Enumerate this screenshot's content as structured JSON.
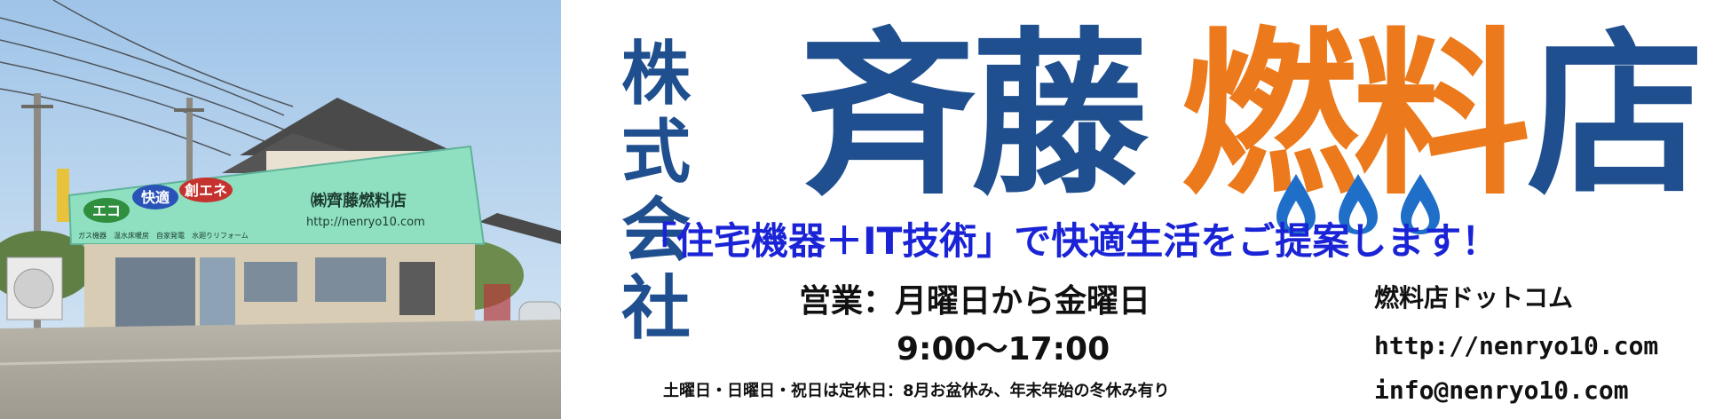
{
  "photo": {
    "alt": "店舗外観写真",
    "sign_name": "㈱齊藤燃料店",
    "sign_url": "http://nenryo10.com",
    "badges": [
      "エコ",
      "快適",
      "創エネ"
    ],
    "services": "ガス機器　温水床暖房　自家発電　水廻りリフォーム"
  },
  "logo": {
    "kabushiki_line1": "株式",
    "kabushiki_line2": "会社",
    "saito": "斉藤",
    "nen": "燃",
    "ryo": "料",
    "ten": "店"
  },
  "tagline": "「住宅機器＋IT技術」で快適生活をご提案します！",
  "hours": {
    "label": "営業：月曜日から金曜日",
    "time": "9:00〜17:00",
    "holidays": "土曜日・日曜日・祝日は定休日：8月お盆休み、年末年始の冬休み有り"
  },
  "contact": {
    "site_name": "燃料店ドットコム",
    "url": "http://nenryo10.com",
    "email": "info@nenryo10.com"
  },
  "colors": {
    "navy": "#1f4f8f",
    "orange": "#ec7a1c",
    "tagline_blue": "#1a24d6",
    "sign_green": "#8fe0c0",
    "flame_blue": "#1f6fc8"
  }
}
